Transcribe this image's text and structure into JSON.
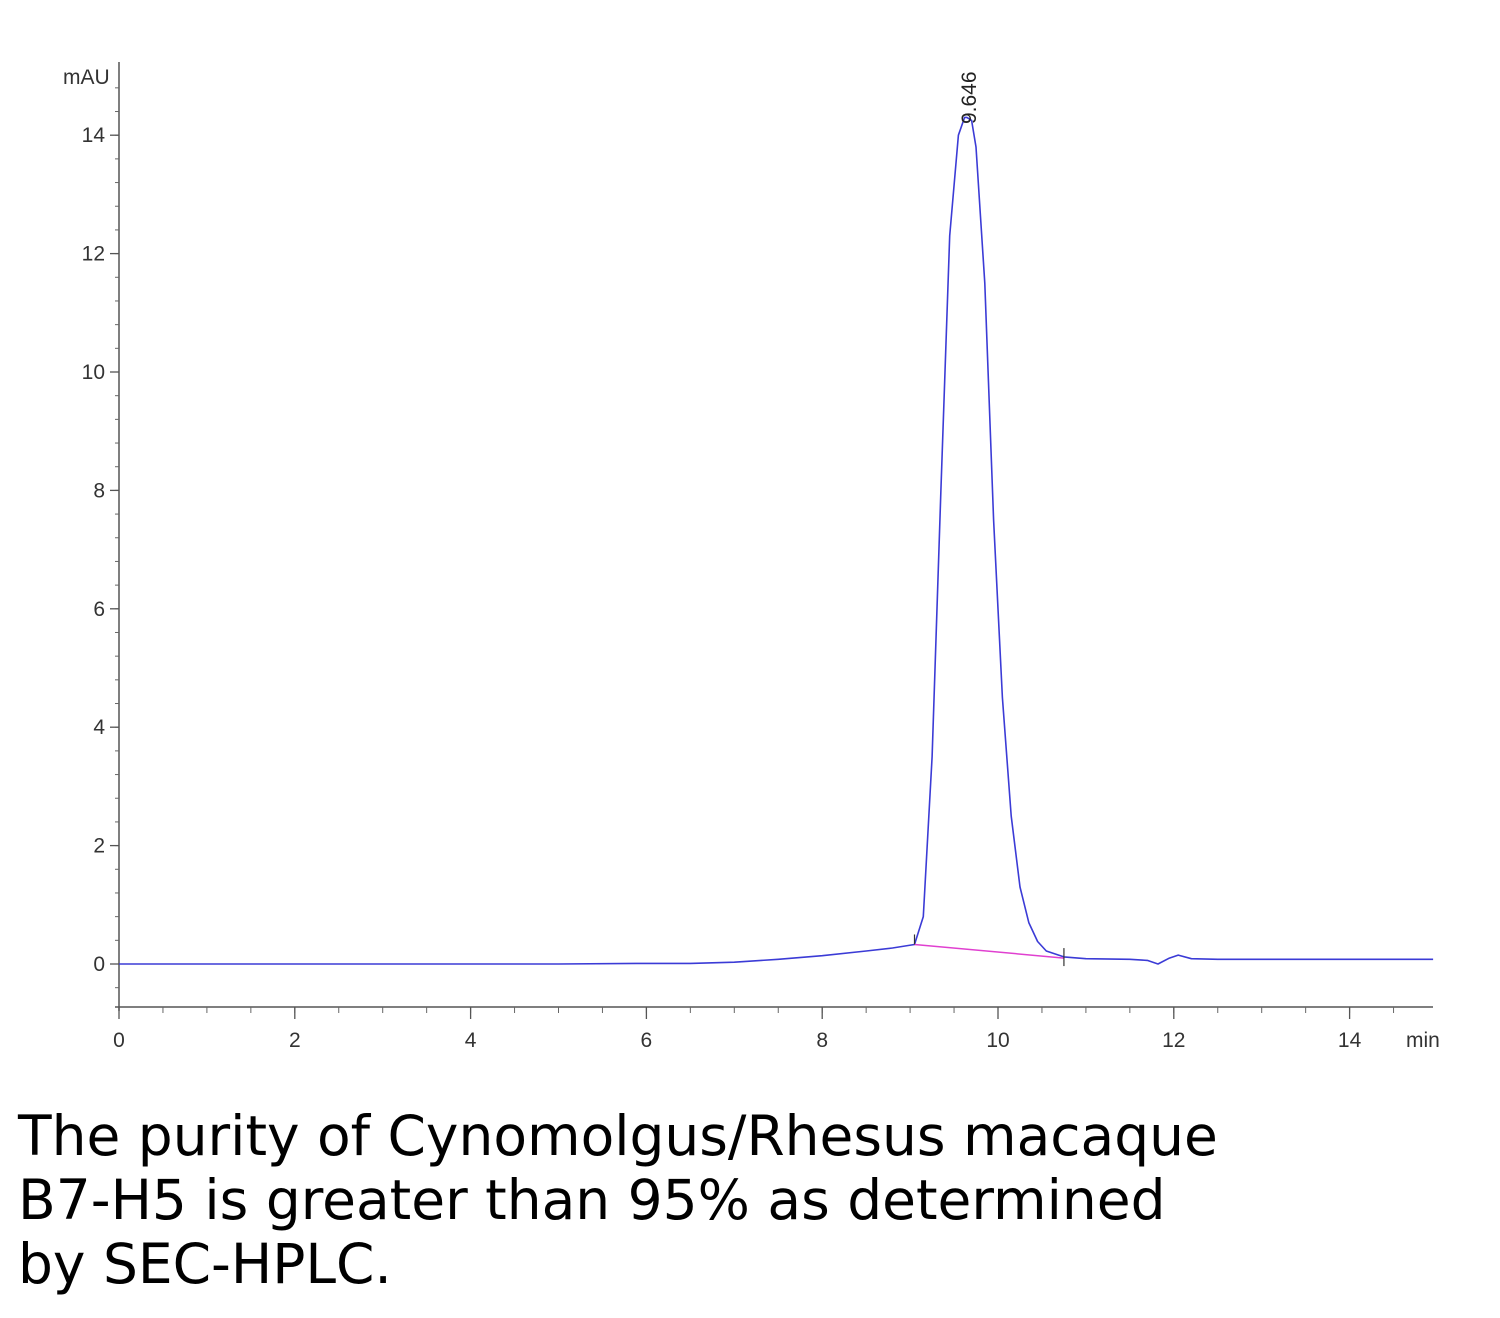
{
  "chart_data": {
    "type": "line",
    "ylabel": "mAU",
    "xlabel": "min",
    "xlim": [
      0,
      15
    ],
    "ylim": [
      -0.75,
      15
    ],
    "x_ticks": [
      0,
      2,
      4,
      6,
      8,
      10,
      12,
      14
    ],
    "y_ticks": [
      0,
      2,
      4,
      6,
      8,
      10,
      12,
      14
    ],
    "peak_annotation": {
      "x": 9.646,
      "y": 14.3,
      "label": "9.646"
    },
    "line_color": "#3b3bd6",
    "baseline_color": "#e040d0",
    "baseline_segment": {
      "x": [
        9.05,
        10.75
      ],
      "y": [
        0.33,
        0.1
      ]
    },
    "peak_markers_x": [
      9.05,
      10.75
    ],
    "series": [
      {
        "x": [
          0,
          1,
          2,
          3,
          4,
          5,
          6,
          6.5,
          7,
          7.5,
          8,
          8.5,
          8.8,
          9.05,
          9.15,
          9.25,
          9.35,
          9.45,
          9.55,
          9.62,
          9.646,
          9.7,
          9.75,
          9.85,
          9.95,
          10.05,
          10.15,
          10.25,
          10.35,
          10.45,
          10.55,
          10.75,
          11,
          11.5,
          11.7,
          11.82,
          11.95,
          12.05,
          12.2,
          12.5,
          13,
          14,
          14.95
        ],
        "y": [
          0.0,
          0.0,
          0.0,
          0.0,
          0.0,
          0.0,
          0.01,
          0.01,
          0.03,
          0.08,
          0.14,
          0.22,
          0.27,
          0.33,
          0.8,
          3.5,
          8.0,
          12.3,
          14.0,
          14.3,
          14.3,
          14.25,
          13.8,
          11.5,
          7.5,
          4.5,
          2.5,
          1.3,
          0.7,
          0.38,
          0.22,
          0.12,
          0.09,
          0.08,
          0.06,
          0.0,
          0.1,
          0.15,
          0.09,
          0.08,
          0.08,
          0.08,
          0.08
        ]
      }
    ]
  },
  "caption": {
    "line1": "The purity of Cynomolgus/Rhesus macaque",
    "line2": "B7-H5 is greater than 95% as determined",
    "line3": "by SEC-HPLC."
  }
}
